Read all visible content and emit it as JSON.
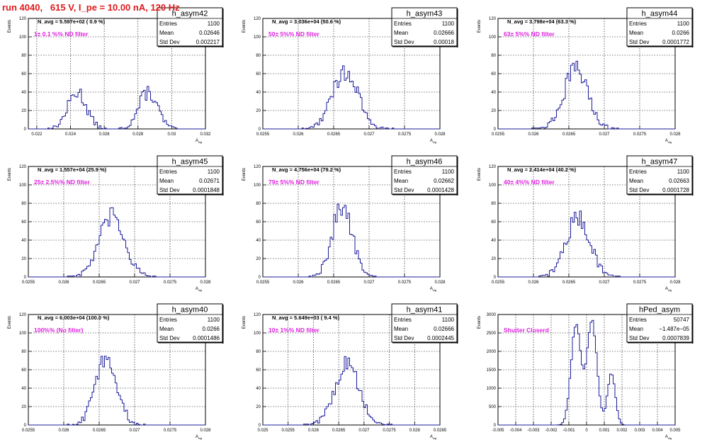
{
  "page_title": "run 4040,   615 V, I_pe = 10.00 nA, 120 Hz",
  "stat_labels": {
    "entries": "Entries",
    "mean": "Mean",
    "std": "Std Dev"
  },
  "colors": {
    "histogram": "#1c1c9a",
    "annotation": "#e01fe0",
    "title": "#e0191b",
    "grid": "#000000"
  },
  "chart_data": [
    {
      "type": "histogram",
      "name": "h_asym42",
      "navg": "N_avg = 5.597e+02 ( 0.9 %)",
      "annotation": "1± 0.1 %% ND filter",
      "stats": {
        "entries": "1100",
        "mean": "0.02646",
        "std": "0.002217"
      },
      "xlabel": "A_sig",
      "ylabel": "Events",
      "xlim": [
        0.0215,
        0.032
      ],
      "ylim": [
        0,
        120
      ],
      "xticks": [
        "0.022",
        "0.024",
        "0.026",
        "0.028",
        "0.03",
        "0.032"
      ],
      "xtick_values": [
        0.022,
        0.024,
        0.026,
        0.028,
        0.03,
        0.032
      ],
      "yticks": [
        "0",
        "20",
        "40",
        "60",
        "80",
        "100",
        "120"
      ],
      "peaks": [
        {
          "center": 0.0244,
          "sigma": 0.00055,
          "height": 40
        },
        {
          "center": 0.0286,
          "sigma": 0.00055,
          "height": 40
        }
      ]
    },
    {
      "type": "histogram",
      "name": "h_asym43",
      "navg": "N_avg = 3.036e+04 (50.6 %)",
      "annotation": "50± 5%% ND filter",
      "stats": {
        "entries": "1100",
        "mean": "0.02666",
        "std": "0.00018"
      },
      "xlabel": "A_sig",
      "ylabel": "Events",
      "xlim": [
        0.0255,
        0.028
      ],
      "ylim": [
        0,
        120
      ],
      "xticks": [
        "0.0255",
        "0.026",
        "0.0265",
        "0.027",
        "0.0275",
        "0.028"
      ],
      "xtick_values": [
        0.0255,
        0.026,
        0.0265,
        0.027,
        0.0275,
        0.028
      ],
      "yticks": [
        "0",
        "20",
        "40",
        "60",
        "80",
        "100",
        "120"
      ],
      "peaks": [
        {
          "center": 0.02666,
          "sigma": 0.00018,
          "height": 62
        }
      ]
    },
    {
      "type": "histogram",
      "name": "h_asym44",
      "navg": "N_avg = 3.798e+04 (63.3 %)",
      "annotation": "63± 5%% ND filter",
      "stats": {
        "entries": "1100",
        "mean": "0.0266",
        "std": "0.0001772"
      },
      "xlabel": "A_sig",
      "ylabel": "Events",
      "xlim": [
        0.0255,
        0.028
      ],
      "ylim": [
        0,
        120
      ],
      "xticks": [
        "0.0255",
        "0.026",
        "0.0265",
        "0.027",
        "0.0275",
        "0.028"
      ],
      "xtick_values": [
        0.0255,
        0.026,
        0.0265,
        0.027,
        0.0275,
        0.028
      ],
      "yticks": [
        "0",
        "20",
        "40",
        "60",
        "80",
        "100",
        "120"
      ],
      "peaks": [
        {
          "center": 0.0266,
          "sigma": 0.00017,
          "height": 65
        }
      ]
    },
    {
      "type": "histogram",
      "name": "h_asym45",
      "navg": "N_avg = 1.557e+04 (25.9 %)",
      "annotation": "25± 2.5%% ND filter",
      "stats": {
        "entries": "1100",
        "mean": "0.02671",
        "std": "0.0001848"
      },
      "xlabel": "A_sig",
      "ylabel": "Events",
      "xlim": [
        0.0255,
        0.028
      ],
      "ylim": [
        0,
        120
      ],
      "xticks": [
        "0.0255",
        "0.026",
        "0.0265",
        "0.027",
        "0.0275",
        "0.028"
      ],
      "xtick_values": [
        0.0255,
        0.026,
        0.0265,
        0.027,
        0.0275,
        0.028
      ],
      "yticks": [
        "0",
        "20",
        "40",
        "60",
        "80",
        "100",
        "120"
      ],
      "peaks": [
        {
          "center": 0.02668,
          "sigma": 0.00018,
          "height": 65
        }
      ]
    },
    {
      "type": "histogram",
      "name": "h_asym46",
      "navg": "N_avg = 4.756e+04 (79.2 %)",
      "annotation": "79± 5%% ND filter",
      "stats": {
        "entries": "1100",
        "mean": "0.02662",
        "std": "0.0001428"
      },
      "xlabel": "A_sig",
      "ylabel": "Events",
      "xlim": [
        0.0255,
        0.028
      ],
      "ylim": [
        0,
        120
      ],
      "xticks": [
        "0.0255",
        "0.026",
        "0.0265",
        "0.027",
        "0.0275",
        "0.028"
      ],
      "xtick_values": [
        0.0255,
        0.026,
        0.0265,
        0.027,
        0.0275,
        0.028
      ],
      "yticks": [
        "0",
        "20",
        "40",
        "60",
        "80",
        "100",
        "120"
      ],
      "peaks": [
        {
          "center": 0.02662,
          "sigma": 0.00014,
          "height": 78
        }
      ]
    },
    {
      "type": "histogram",
      "name": "h_asym47",
      "navg": "N_avg = 2.414e+04 (40.2 %)",
      "annotation": "40± 4%% ND filter",
      "stats": {
        "entries": "1100",
        "mean": "0.02663",
        "std": "0.0001728"
      },
      "xlabel": "A_sig",
      "ylabel": "Events",
      "xlim": [
        0.0255,
        0.028
      ],
      "ylim": [
        0,
        120
      ],
      "xticks": [
        "0.0255",
        "0.026",
        "0.0265",
        "0.027",
        "0.0275",
        "0.028"
      ],
      "xtick_values": [
        0.0255,
        0.026,
        0.0265,
        0.027,
        0.0275,
        0.028
      ],
      "yticks": [
        "0",
        "20",
        "40",
        "60",
        "80",
        "100",
        "120"
      ],
      "peaks": [
        {
          "center": 0.02663,
          "sigma": 0.00017,
          "height": 64
        }
      ]
    },
    {
      "type": "histogram",
      "name": "h_asym40",
      "navg": "N_avg = 6.003e+04 (100.0 %)",
      "annotation": "100%% (No filter)",
      "stats": {
        "entries": "1100",
        "mean": "0.0266",
        "std": "0.0001486"
      },
      "xlabel": "A_sig",
      "ylabel": "Events",
      "xlim": [
        0.0255,
        0.028
      ],
      "ylim": [
        0,
        120
      ],
      "xticks": [
        "0.0255",
        "0.026",
        "0.0265",
        "0.027",
        "0.0275",
        "0.028"
      ],
      "xtick_values": [
        0.0255,
        0.026,
        0.0265,
        0.027,
        0.0275,
        0.028
      ],
      "yticks": [
        "0",
        "20",
        "40",
        "60",
        "80",
        "100",
        "120"
      ],
      "peaks": [
        {
          "center": 0.0266,
          "sigma": 0.00015,
          "height": 74
        }
      ]
    },
    {
      "type": "histogram",
      "name": "h_asym41",
      "navg": "N_avg = 5.649e+03 ( 9.4 %)",
      "annotation": "10± 1%% ND filter",
      "stats": {
        "entries": "1100",
        "mean": "0.02666",
        "std": "0.0002445"
      },
      "xlabel": "A_sig",
      "ylabel": "Events",
      "xlim": [
        0.025,
        0.0285
      ],
      "ylim": [
        0,
        120
      ],
      "xticks": [
        "0.025",
        "0.0255",
        "0.026",
        "0.0265",
        "0.027",
        "0.0275",
        "0.028",
        "0.0285"
      ],
      "xtick_values": [
        0.025,
        0.0255,
        0.026,
        0.0265,
        0.027,
        0.0275,
        0.028,
        0.0285
      ],
      "yticks": [
        "0",
        "20",
        "40",
        "60",
        "80",
        "100",
        "120"
      ],
      "peaks": [
        {
          "center": 0.02666,
          "sigma": 0.00024,
          "height": 66
        }
      ]
    },
    {
      "type": "histogram",
      "name": "hPed_asym",
      "navg": "",
      "annotation": "Shutter Closerd",
      "stats": {
        "entries": "50747",
        "mean": "−1.487e−05",
        "std": "0.0007839"
      },
      "xlabel": "A_sig",
      "ylabel": "Events",
      "xlim": [
        -0.005,
        0.005
      ],
      "ylim": [
        0,
        3000
      ],
      "xticks": [
        "-0.005",
        "-0.004",
        "-0.003",
        "-0.002",
        "-0.001",
        "0",
        "0.001",
        "0.002",
        "0.003",
        "0.004",
        "0.005"
      ],
      "xtick_values": [
        -0.005,
        -0.004,
        -0.003,
        -0.002,
        -0.001,
        0,
        0.001,
        0.002,
        0.003,
        0.004,
        0.005
      ],
      "yticks": [
        "0",
        "500",
        "1000",
        "1500",
        "2000",
        "2500",
        "3000"
      ],
      "peaks": [
        {
          "center": -0.0006,
          "sigma": 0.00028,
          "height": 2700
        },
        {
          "center": 0.0003,
          "sigma": 0.00028,
          "height": 2850
        },
        {
          "center": 0.0014,
          "sigma": 0.00022,
          "height": 1400
        }
      ]
    }
  ]
}
